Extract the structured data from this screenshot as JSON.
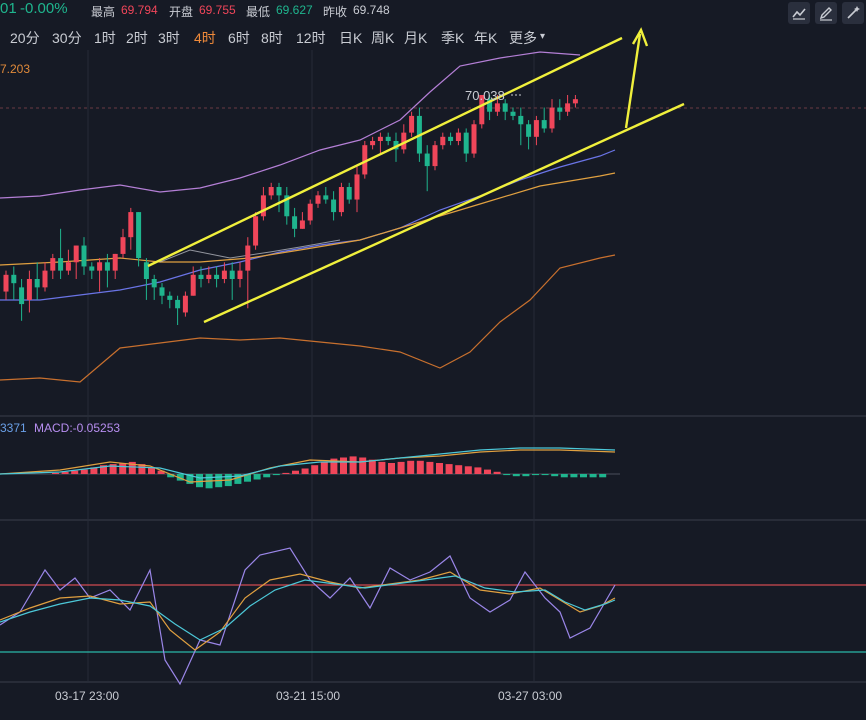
{
  "header": {
    "price_fragment": "01",
    "change_pct": "-0.00%",
    "high_label": "最高",
    "high_value": "69.794",
    "open_label": "开盘",
    "open_value": "69.755",
    "low_label": "最低",
    "low_value": "69.627",
    "prev_close_label": "昨收",
    "prev_close_value": "69.748"
  },
  "toolbar": {
    "icons": [
      "chart-line-icon",
      "draw-pen-icon",
      "magic-wand-icon"
    ]
  },
  "timeframes": [
    {
      "label": "20分",
      "active": false
    },
    {
      "label": "30分",
      "active": false
    },
    {
      "label": "1时",
      "active": false
    },
    {
      "label": "2时",
      "active": false
    },
    {
      "label": "3时",
      "active": false
    },
    {
      "label": "4时",
      "active": true
    },
    {
      "label": "6时",
      "active": false
    },
    {
      "label": "8时",
      "active": false
    },
    {
      "label": "12时",
      "active": false
    },
    {
      "label": "日K",
      "active": false
    },
    {
      "label": "周K",
      "active": false
    },
    {
      "label": "月K",
      "active": false
    },
    {
      "label": "季K",
      "active": false
    },
    {
      "label": "年K",
      "active": false
    },
    {
      "label": "更多",
      "active": false
    }
  ],
  "main_panel": {
    "indicator_fragment": "7.203",
    "peak_label": "70.038"
  },
  "macd_panel": {
    "value_fragment": "3371",
    "macd_label": "MACD:-0.05253"
  },
  "x_axis": {
    "ticks": [
      "03-17 23:00",
      "03-21 15:00",
      "03-27 03:00"
    ]
  },
  "colors": {
    "up": "#f0465a",
    "down": "#1fb58e",
    "trend_line": "#f0f03c",
    "background": "#161a25"
  },
  "chart_data": {
    "type": "candlestick",
    "price_levels": [
      69.63,
      70.04
    ],
    "peak_value": 70.038,
    "trend_lines": [
      "upper channel",
      "lower channel",
      "breakout arrow"
    ],
    "candles": [
      [
        69.57,
        69.61,
        69.62,
        69.55
      ],
      [
        69.61,
        69.59,
        69.63,
        69.55
      ],
      [
        69.58,
        69.54,
        69.6,
        69.5
      ],
      [
        69.55,
        69.6,
        69.62,
        69.52
      ],
      [
        69.6,
        69.58,
        69.64,
        69.55
      ],
      [
        69.58,
        69.62,
        69.64,
        69.57
      ],
      [
        69.62,
        69.65,
        69.66,
        69.6
      ],
      [
        69.65,
        69.62,
        69.72,
        69.6
      ],
      [
        69.62,
        69.64,
        69.67,
        69.61
      ],
      [
        69.64,
        69.68,
        69.68,
        69.6
      ],
      [
        69.68,
        69.63,
        69.7,
        69.61
      ],
      [
        69.63,
        69.62,
        69.64,
        69.6
      ],
      [
        69.62,
        69.64,
        69.65,
        69.57
      ],
      [
        69.64,
        69.62,
        69.66,
        69.58
      ],
      [
        69.62,
        69.66,
        69.66,
        69.6
      ],
      [
        69.66,
        69.7,
        69.72,
        69.65
      ],
      [
        69.7,
        69.76,
        69.77,
        69.67
      ],
      [
        69.76,
        69.65,
        69.76,
        69.63
      ],
      [
        69.64,
        69.6,
        69.65,
        69.55
      ],
      [
        69.6,
        69.58,
        69.61,
        69.55
      ],
      [
        69.58,
        69.56,
        69.59,
        69.54
      ],
      [
        69.56,
        69.55,
        69.57,
        69.53
      ],
      [
        69.55,
        69.53,
        69.56,
        69.49
      ],
      [
        69.52,
        69.56,
        69.57,
        69.51
      ],
      [
        69.56,
        69.61,
        69.63,
        69.56
      ],
      [
        69.61,
        69.6,
        69.63,
        69.58
      ],
      [
        69.6,
        69.61,
        69.63,
        69.59
      ],
      [
        69.61,
        69.6,
        69.63,
        69.58
      ],
      [
        69.6,
        69.62,
        69.64,
        69.59
      ],
      [
        69.62,
        69.6,
        69.64,
        69.55
      ],
      [
        69.6,
        69.62,
        69.64,
        69.58
      ],
      [
        69.62,
        69.68,
        69.7,
        69.53
      ],
      [
        69.68,
        69.75,
        69.76,
        69.67
      ],
      [
        69.75,
        69.8,
        69.82,
        69.74
      ],
      [
        69.8,
        69.82,
        69.83,
        69.79
      ],
      [
        69.82,
        69.8,
        69.83,
        69.76
      ],
      [
        69.8,
        69.75,
        69.82,
        69.73
      ],
      [
        69.75,
        69.72,
        69.77,
        69.7
      ],
      [
        69.72,
        69.74,
        69.76,
        69.72
      ],
      [
        69.74,
        69.78,
        69.79,
        69.73
      ],
      [
        69.78,
        69.8,
        69.81,
        69.77
      ],
      [
        69.8,
        69.79,
        69.82,
        69.78
      ],
      [
        69.79,
        69.76,
        69.81,
        69.74
      ],
      [
        69.76,
        69.82,
        69.83,
        69.75
      ],
      [
        69.82,
        69.79,
        69.83,
        69.78
      ],
      [
        69.79,
        69.85,
        69.87,
        69.76
      ],
      [
        69.85,
        69.92,
        69.93,
        69.84
      ],
      [
        69.92,
        69.93,
        69.94,
        69.91
      ],
      [
        69.93,
        69.94,
        69.95,
        69.9
      ],
      [
        69.94,
        69.93,
        69.95,
        69.92
      ],
      [
        69.93,
        69.91,
        69.95,
        69.88
      ],
      [
        69.91,
        69.95,
        69.97,
        69.9
      ],
      [
        69.95,
        69.99,
        70.0,
        69.94
      ],
      [
        69.99,
        69.9,
        70.01,
        69.88
      ],
      [
        69.9,
        69.87,
        69.92,
        69.81
      ],
      [
        69.87,
        69.92,
        69.93,
        69.86
      ],
      [
        69.92,
        69.94,
        69.95,
        69.91
      ],
      [
        69.94,
        69.93,
        69.95,
        69.92
      ],
      [
        69.93,
        69.95,
        69.96,
        69.92
      ],
      [
        69.95,
        69.9,
        69.96,
        69.88
      ],
      [
        69.9,
        69.97,
        69.98,
        69.89
      ],
      [
        69.97,
        70.04,
        70.04,
        69.96
      ],
      [
        70.03,
        70.0,
        70.04,
        69.98
      ],
      [
        70.0,
        70.02,
        70.04,
        69.99
      ],
      [
        70.02,
        70.0,
        70.03,
        69.98
      ],
      [
        70.0,
        69.99,
        70.01,
        69.98
      ],
      [
        69.99,
        69.97,
        70.01,
        69.92
      ],
      [
        69.97,
        69.94,
        69.98,
        69.91
      ],
      [
        69.94,
        69.98,
        69.99,
        69.92
      ],
      [
        69.98,
        69.96,
        70.01,
        69.95
      ],
      [
        69.96,
        70.01,
        70.03,
        69.95
      ],
      [
        70.01,
        70.0,
        70.03,
        69.98
      ],
      [
        70.0,
        70.02,
        70.04,
        69.99
      ],
      [
        70.02,
        70.03,
        70.04,
        70.01
      ]
    ]
  }
}
